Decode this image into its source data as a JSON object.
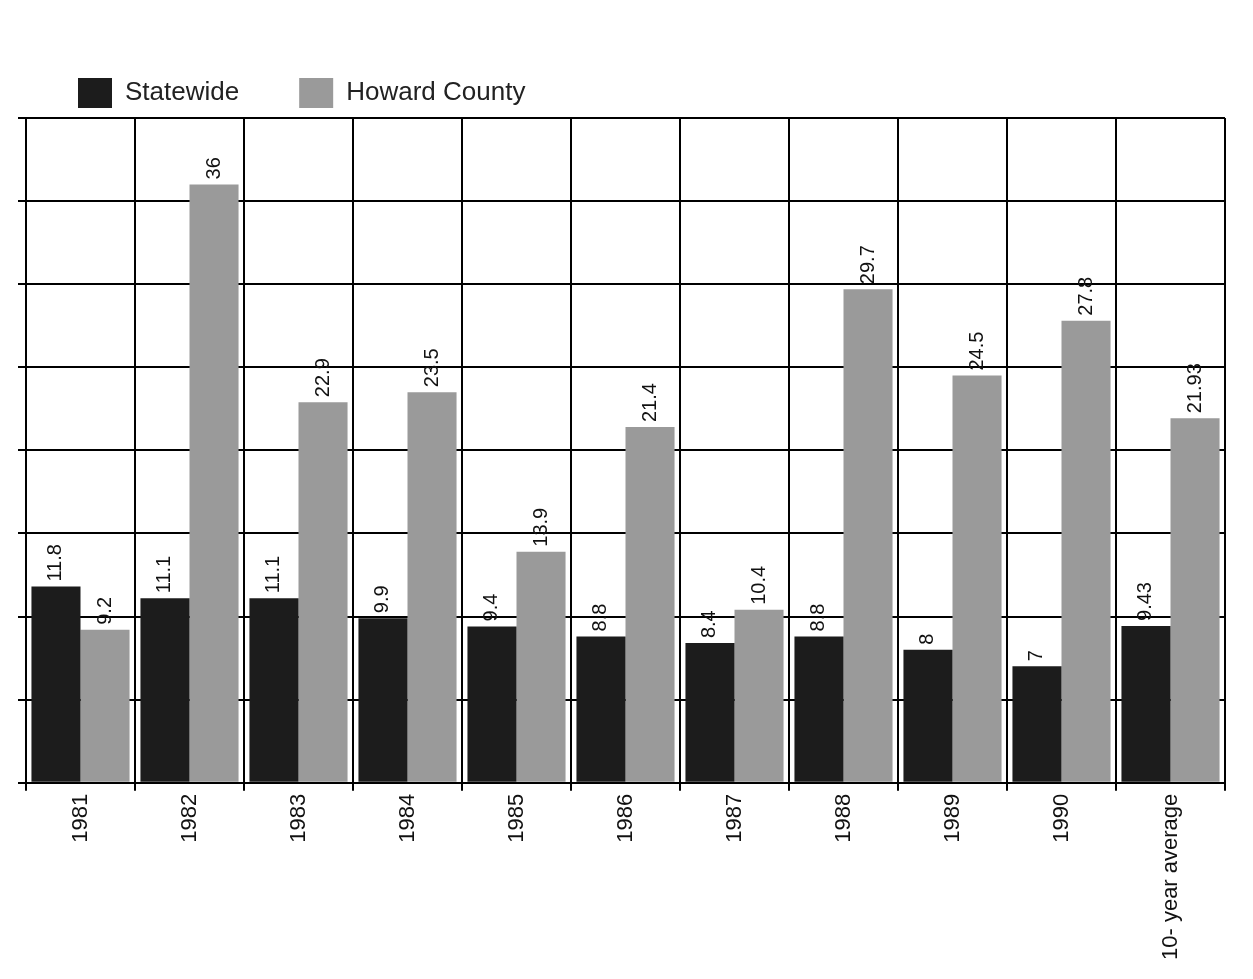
{
  "chart_data": {
    "type": "bar",
    "categories": [
      "1981",
      "1982",
      "1983",
      "1984",
      "1985",
      "1986",
      "1987",
      "1988",
      "1989",
      "1990",
      "10- year average"
    ],
    "series": [
      {
        "name": "Statewide",
        "color": "#1c1c1c",
        "values": [
          11.8,
          11.1,
          11.1,
          9.9,
          9.4,
          8.8,
          8.4,
          8.8,
          8,
          7,
          9.43
        ]
      },
      {
        "name": "Howard County",
        "color": "#9a9a9a",
        "values": [
          9.2,
          36,
          22.9,
          23.5,
          13.9,
          21.4,
          10.4,
          29.7,
          24.5,
          27.8,
          21.93
        ]
      }
    ],
    "tick_labels": "x",
    "grid": true,
    "legend": "top left",
    "data_labels": true
  }
}
